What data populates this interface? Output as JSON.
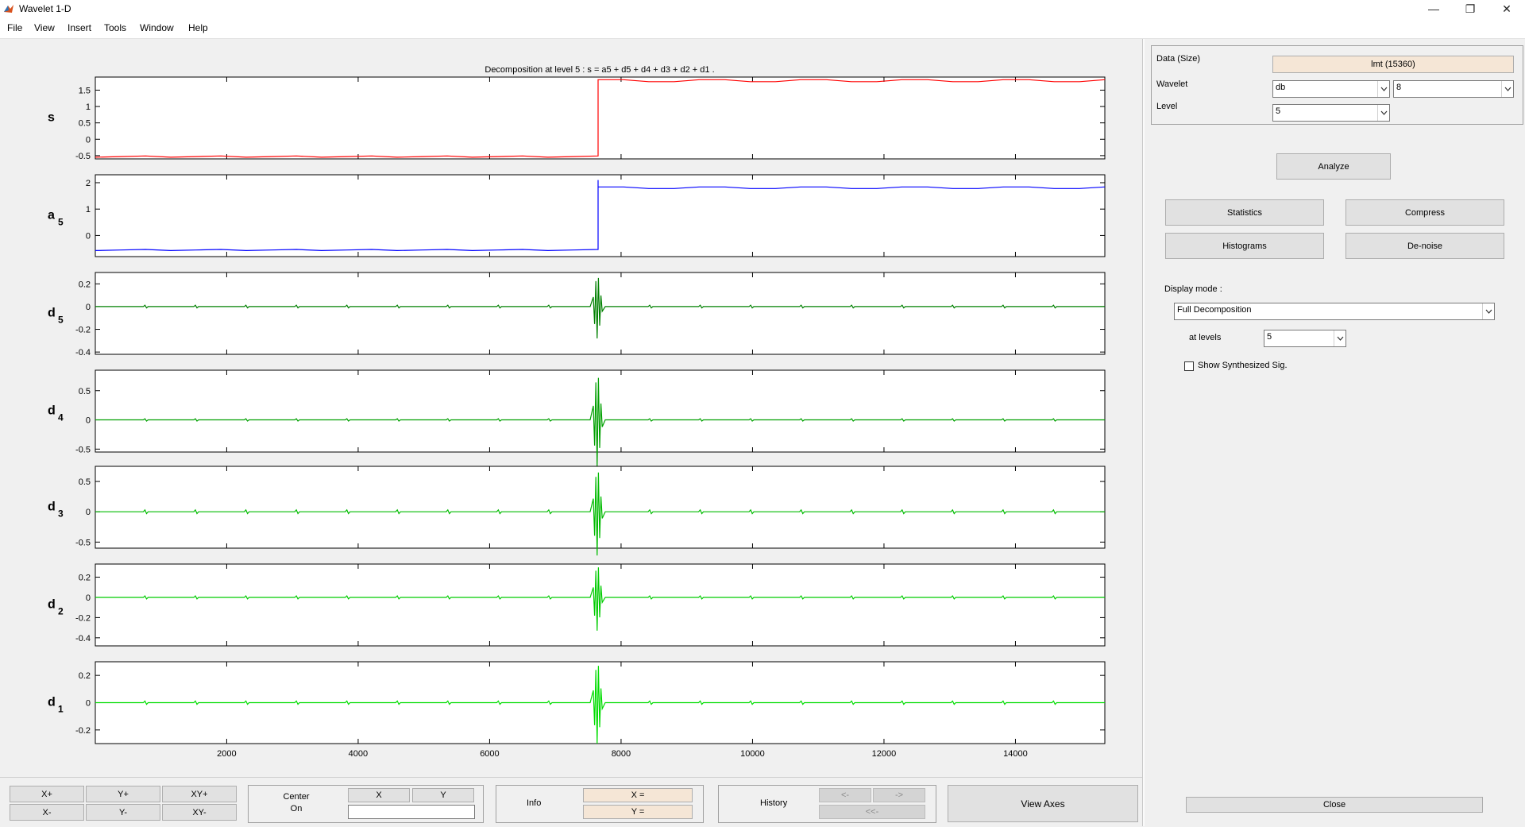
{
  "window": {
    "title": "Wavelet 1-D",
    "minimize": "—",
    "restore": "❐",
    "close": "✕"
  },
  "menu": [
    "File",
    "View",
    "Insert",
    "Tools",
    "Window",
    "Help"
  ],
  "figure": {
    "title": "Decomposition at level 5 : s = a5 + d5 + d4 + d3 + d2 + d1 .",
    "x_ticks": [
      2000,
      4000,
      6000,
      8000,
      10000,
      12000,
      14000
    ],
    "x_tick_labels": [
      "2000",
      "4000",
      "6000",
      "8000",
      "10000",
      "12000",
      "14000"
    ],
    "xlim": [
      1,
      15360
    ]
  },
  "chart_data": [
    {
      "type": "line",
      "name_main": "s",
      "name_sub": "",
      "color": "#ff0000",
      "ylim": [
        -0.6,
        1.9
      ],
      "yticks": [
        -0.5,
        0,
        0.5,
        1,
        1.5
      ],
      "ytick_labels": [
        "-0.5",
        "0",
        "0.5",
        "1",
        "1.5"
      ],
      "jump_at": 7650,
      "pre_level": -0.53,
      "post_level": 1.78,
      "spike": 0,
      "bursts": 0
    },
    {
      "type": "line",
      "name_main": "a",
      "name_sub": "5",
      "color": "#0000ff",
      "ylim": [
        -0.8,
        2.3
      ],
      "yticks": [
        0,
        1,
        2
      ],
      "ytick_labels": [
        "0",
        "1",
        "2"
      ],
      "jump_at": 7650,
      "pre_level": -0.55,
      "post_level": 1.8,
      "spike": 2.1,
      "bursts": 0
    },
    {
      "type": "line",
      "name_main": "d",
      "name_sub": "5",
      "color": "#008000",
      "ylim": [
        -0.42,
        0.3
      ],
      "yticks": [
        -0.4,
        -0.2,
        0,
        0.2
      ],
      "ytick_labels": [
        "-0.4",
        "-0.2",
        "0",
        "0.2"
      ],
      "jump_at": 7650,
      "pre_level": 0,
      "post_level": 0,
      "spike": 0.28,
      "bursts": 0.012
    },
    {
      "type": "line",
      "name_main": "d",
      "name_sub": "4",
      "color": "#00a000",
      "ylim": [
        -0.55,
        0.85
      ],
      "yticks": [
        -0.5,
        0,
        0.5
      ],
      "ytick_labels": [
        "-0.5",
        "0",
        "0.5"
      ],
      "jump_at": 7650,
      "pre_level": 0,
      "post_level": 0,
      "spike": 0.8,
      "bursts": 0.02
    },
    {
      "type": "line",
      "name_main": "d",
      "name_sub": "3",
      "color": "#00bb00",
      "ylim": [
        -0.6,
        0.75
      ],
      "yticks": [
        -0.5,
        0,
        0.5
      ],
      "ytick_labels": [
        "-0.5",
        "0",
        "0.5"
      ],
      "jump_at": 7650,
      "pre_level": 0,
      "post_level": 0,
      "spike": 0.72,
      "bursts": 0.03
    },
    {
      "type": "line",
      "name_main": "d",
      "name_sub": "2",
      "color": "#00cc00",
      "ylim": [
        -0.48,
        0.33
      ],
      "yticks": [
        -0.4,
        -0.2,
        0,
        0.2
      ],
      "ytick_labels": [
        "-0.4",
        "-0.2",
        "0",
        "0.2"
      ],
      "jump_at": 7650,
      "pre_level": 0,
      "post_level": 0,
      "spike": 0.33,
      "bursts": 0.015
    },
    {
      "type": "line",
      "name_main": "d",
      "name_sub": "1",
      "color": "#00dd00",
      "ylim": [
        -0.3,
        0.3
      ],
      "yticks": [
        -0.2,
        0,
        0.2
      ],
      "ytick_labels": [
        "-0.2",
        "0",
        "0.2"
      ],
      "jump_at": 7650,
      "pre_level": 0,
      "post_level": 0,
      "spike": 0.3,
      "bursts": 0.012
    }
  ],
  "bottom": {
    "zoom": {
      "xplus": "X+",
      "yplus": "Y+",
      "xyplus": "XY+",
      "xminus": "X-",
      "yminus": "Y-",
      "xyminus": "XY-"
    },
    "center": {
      "label_line1": "Center",
      "label_line2": "On",
      "x": "X",
      "y": "Y",
      "value": ""
    },
    "info": {
      "label": "Info",
      "x": "X =",
      "y": "Y ="
    },
    "history": {
      "label": "History",
      "back": "<-",
      "forward": "->",
      "first": "<<-"
    },
    "view_axes": "View Axes"
  },
  "panel": {
    "data_label": "Data  (Size)",
    "data_value": "lmt  (15360)",
    "wavelet_label": "Wavelet",
    "wavelet_family": "db",
    "wavelet_order": "8",
    "level_label": "Level",
    "level_value": "5",
    "analyze": "Analyze",
    "statistics": "Statistics",
    "compress": "Compress",
    "histograms": "Histograms",
    "denoise": "De-noise",
    "display_mode_label": "Display mode :",
    "display_mode_value": "Full Decomposition",
    "at_levels_label": "at levels",
    "at_levels_value": "5",
    "show_synth": "Show Synthesized Sig.",
    "show_synth_checked": false,
    "close": "Close"
  }
}
